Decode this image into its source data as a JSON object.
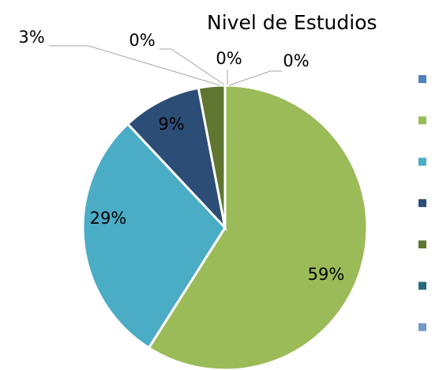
{
  "chart_data": {
    "type": "pie",
    "title": "Nivel de Estudios",
    "categories": [
      null,
      null,
      null,
      null,
      null,
      null,
      null
    ],
    "values": [
      0,
      59,
      29,
      9,
      3,
      0,
      0
    ],
    "value_labels": [
      "0%",
      "59%",
      "29%",
      "9%",
      "3%",
      "0%",
      "0%"
    ],
    "colors": [
      "#4f81bd",
      "#9bbb59",
      "#4bacc6",
      "#2c4d75",
      "#5f7530",
      "#276a7c",
      "#729aca"
    ]
  }
}
